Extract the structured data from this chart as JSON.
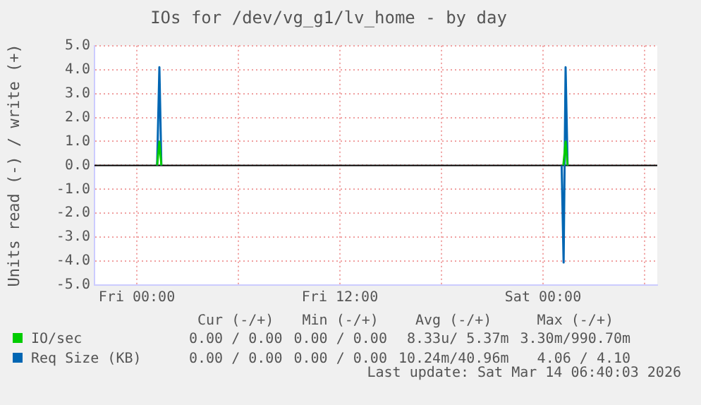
{
  "chart_data": {
    "type": "line",
    "title": "IOs for /dev/vg_g1/lv_home - by day",
    "ylabel": "Units read (-) / write (+)",
    "x": [
      "2026-03-13T01:12",
      "2026-03-13T01:20",
      "2026-03-13T01:27",
      "2026-03-13T12:00",
      "2026-03-14T01:12",
      "2026-03-14T01:20",
      "2026-03-14T01:27"
    ],
    "series": [
      {
        "name": "IO/sec",
        "color": "#00cc00",
        "values": [
          0,
          0.99,
          0,
          null,
          0,
          0.99,
          0
        ]
      },
      {
        "name": "Req Size (KB)",
        "color": "#0066b3",
        "x": [
          "2026-03-13T01:12",
          "2026-03-13T01:20",
          "2026-03-13T01:27",
          "2026-03-13T12:00",
          "2026-03-14T01:06",
          "2026-03-14T01:13",
          "2026-03-14T01:20",
          "2026-03-14T01:27"
        ],
        "values": [
          0,
          4.1,
          0,
          null,
          0,
          -4.06,
          4.1,
          0
        ]
      }
    ],
    "xlim": [
      "2026-03-12T21:30",
      "2026-03-14T06:45"
    ],
    "xticks": [
      {
        "value": "2026-03-13T00:00",
        "label": "Fri 00:00"
      },
      {
        "value": "2026-03-13T06:00",
        "label": null
      },
      {
        "value": "2026-03-13T12:00",
        "label": "Fri 12:00"
      },
      {
        "value": "2026-03-13T18:00",
        "label": null
      },
      {
        "value": "2026-03-14T00:00",
        "label": "Sat 00:00"
      },
      {
        "value": "2026-03-14T06:00",
        "label": null
      }
    ],
    "ylim": [
      -5,
      5
    ],
    "yticks": [
      {
        "value": -5,
        "label": "-5.0"
      },
      {
        "value": -4,
        "label": "-4.0"
      },
      {
        "value": -3,
        "label": "-3.0"
      },
      {
        "value": -2,
        "label": "-2.0"
      },
      {
        "value": -1,
        "label": "-1.0"
      },
      {
        "value": 0,
        "label": "0.0"
      },
      {
        "value": 1,
        "label": "1.0"
      },
      {
        "value": 2,
        "label": "2.0"
      },
      {
        "value": 3,
        "label": "3.0"
      },
      {
        "value": 4,
        "label": "4.0"
      },
      {
        "value": 5,
        "label": "5.0"
      }
    ],
    "ref_lines": [
      {
        "axis": "y",
        "value": 0,
        "color": "#000000"
      }
    ],
    "grid": true,
    "legend": "bottom",
    "marker": "none",
    "line_style": "solid",
    "annotations": [
      "Cur (-/+)",
      "Min (-/+)",
      "Avg (-/+)",
      "Max (-/+)",
      "0.00 / 0.00",
      "0.00 / 0.00",
      "8.33u/ 5.37m",
      "3.30m/990.70m",
      "0.00 / 0.00",
      "0.00 / 0.00",
      "10.24m/40.96m",
      "4.06 / 4.10",
      "Last update: Sat Mar 14 06:40:03 2026"
    ]
  }
}
